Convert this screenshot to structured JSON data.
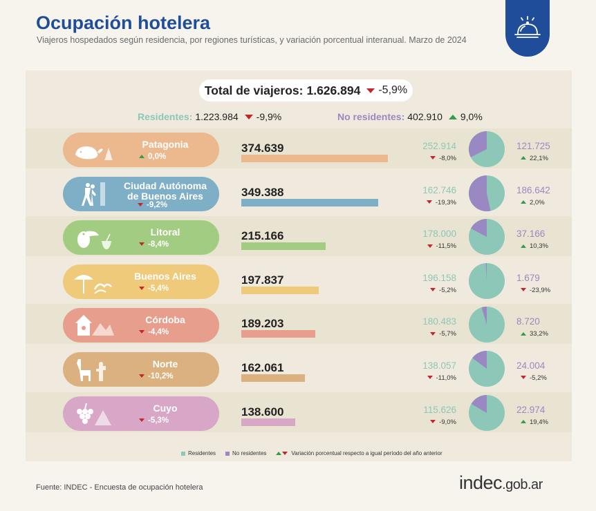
{
  "header": {
    "title": "Ocupación hotelera",
    "subtitle": "Viajeros hospedados según residencia, por regiones turísticas, y variación porcentual interanual. Marzo de 2024"
  },
  "totals": {
    "total_label": "Total de viajeros:",
    "total_value": "1.626.894",
    "total_pct": "-5,9%",
    "residentes_label": "Residentes:",
    "residentes_value": "1.223.984",
    "residentes_pct": "-9,9%",
    "no_residentes_label": "No residentes:",
    "no_residentes_value": "402.910",
    "no_residentes_pct": "9,0%"
  },
  "chart_data": {
    "type": "bar",
    "categories": [
      "Patagonia",
      "Ciudad Autónoma de Buenos Aires",
      "Litoral",
      "Buenos Aires",
      "Córdoba",
      "Norte",
      "Cuyo"
    ],
    "series": [
      {
        "name": "Total",
        "values": [
          374639,
          349388,
          215166,
          197837,
          189203,
          162061,
          138600
        ]
      },
      {
        "name": "Residentes",
        "values": [
          252914,
          162746,
          178000,
          196158,
          180483,
          138057,
          115626
        ]
      },
      {
        "name": "No residentes",
        "values": [
          121725,
          186642,
          37166,
          1679,
          8720,
          24004,
          22974
        ]
      }
    ],
    "regions": [
      {
        "name1": "Patagonia",
        "name2": "",
        "total": "374.639",
        "total_num": 374639,
        "pct": "0,0%",
        "pct_dir": "up",
        "res": "252.914",
        "res_num": 252914,
        "res_pct": "-8,0%",
        "res_dir": "down",
        "nres": "121.725",
        "nres_num": 121725,
        "nres_pct": "22,1%",
        "nres_dir": "up",
        "color": "#ecb88e",
        "icon": "whale-icon"
      },
      {
        "name1": "Ciudad Autónoma",
        "name2": "de Buenos Aires",
        "total": "349.388",
        "total_num": 349388,
        "pct": "-9,2%",
        "pct_dir": "down",
        "res": "162.746",
        "res_num": 162746,
        "res_pct": "-19,3%",
        "res_dir": "down",
        "nres": "186.642",
        "nres_num": 186642,
        "nres_pct": "2,0%",
        "nres_dir": "up",
        "color": "#7fafc7",
        "icon": "tango-dancers-icon"
      },
      {
        "name1": "Litoral",
        "name2": "",
        "total": "215.166",
        "total_num": 215166,
        "pct": "-8,4%",
        "pct_dir": "down",
        "res": "178.000",
        "res_num": 178000,
        "res_pct": "-11,5%",
        "res_dir": "down",
        "nres": "37.166",
        "nres_num": 37166,
        "nres_pct": "10,3%",
        "nres_dir": "up",
        "color": "#a3cc83",
        "icon": "toucan-icon"
      },
      {
        "name1": "Buenos Aires",
        "name2": "",
        "total": "197.837",
        "total_num": 197837,
        "pct": "-5,4%",
        "pct_dir": "down",
        "res": "196.158",
        "res_num": 196158,
        "res_pct": "-5,2%",
        "res_dir": "down",
        "nres": "1.679",
        "nres_num": 1679,
        "nres_pct": "-23,9%",
        "nres_dir": "down",
        "color": "#f0ca7b",
        "icon": "beach-umbrella-icon"
      },
      {
        "name1": "Córdoba",
        "name2": "",
        "total": "189.203",
        "total_num": 189203,
        "pct": "-4,4%",
        "pct_dir": "down",
        "res": "180.483",
        "res_num": 180483,
        "res_pct": "-5,7%",
        "res_dir": "down",
        "nres": "8.720",
        "nres_num": 8720,
        "nres_pct": "33,2%",
        "nres_dir": "up",
        "color": "#e89e8c",
        "icon": "birdhouse-icon"
      },
      {
        "name1": "Norte",
        "name2": "",
        "total": "162.061",
        "total_num": 162061,
        "pct": "-10,2%",
        "pct_dir": "down",
        "res": "138.057",
        "res_num": 138057,
        "res_pct": "-11,0%",
        "res_dir": "down",
        "nres": "24.004",
        "nres_num": 24004,
        "nres_pct": "-5,2%",
        "nres_dir": "down",
        "color": "#dbb27f",
        "icon": "llama-icon"
      },
      {
        "name1": "Cuyo",
        "name2": "",
        "total": "138.600",
        "total_num": 138600,
        "pct": "-5,3%",
        "pct_dir": "down",
        "res": "115.626",
        "res_num": 115626,
        "res_pct": "-9,0%",
        "res_dir": "down",
        "nres": "22.974",
        "nres_num": 22974,
        "nres_pct": "19,4%",
        "nres_dir": "up",
        "color": "#d8a6c6",
        "icon": "grapes-icon"
      }
    ],
    "colors": {
      "residentes": "#8dc7b8",
      "no_residentes": "#9a88c2",
      "up": "#2e9e4a",
      "down": "#c0282e"
    }
  },
  "legend": {
    "residentes": "Residentes",
    "no_residentes": "No residentes",
    "variacion": "Variación porcentual respecto a igual período del año anterior"
  },
  "footer": {
    "source": "Fuente: INDEC - Encuesta de ocupación hotelera",
    "logo_main": "indec",
    "logo_suffix": ".gob.ar"
  },
  "icons": {
    "badge": "hotel-bell-icon"
  }
}
